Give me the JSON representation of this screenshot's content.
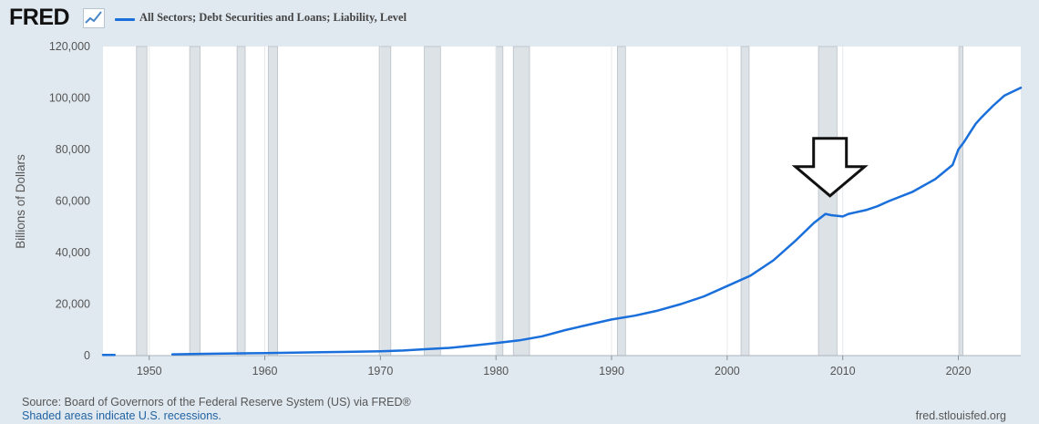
{
  "header": {
    "logo_text": "FRED",
    "logo_icon": "trend-line-icon"
  },
  "footer": {
    "source": "Source: Board of Governors of the Federal Reserve System (US) via FRED®",
    "note": "Shaded areas indicate U.S. recessions.",
    "site": "fred.stlouisfed.org"
  },
  "colors": {
    "line": "#1a6fdb",
    "recession": "#dde2e7",
    "background": "#e1e9f0",
    "plot": "#ffffff"
  },
  "chart_data": {
    "type": "line",
    "title": "",
    "xlabel": "",
    "ylabel": "Billions of Dollars",
    "xlim": [
      1946,
      2025.4
    ],
    "ylim": [
      0,
      120000
    ],
    "x_ticks": [
      1950,
      1960,
      1970,
      1980,
      1990,
      2000,
      2010,
      2020
    ],
    "y_ticks": [
      0,
      20000,
      40000,
      60000,
      80000,
      100000,
      120000
    ],
    "y_tick_labels": [
      "0",
      "20,000",
      "40,000",
      "60,000",
      "80,000",
      "100,000",
      "120,000"
    ],
    "grid": "vertical",
    "legend": "top-left",
    "series": [
      {
        "name": "All Sectors; Debt Securities and Loans; Liability, Level",
        "segments": [
          {
            "x": [
              1946,
              1947
            ],
            "y": [
              300,
              300
            ]
          },
          {
            "x": [
              1952,
              1955,
              1960,
              1965,
              1970,
              1972,
              1974,
              1976,
              1978,
              1980,
              1982,
              1984,
              1986,
              1988,
              1990,
              1992,
              1994,
              1996,
              1998,
              2000,
              2002,
              2004,
              2006,
              2007.5,
              2008.5,
              2009,
              2010,
              2010.5,
              2011,
              2012,
              2013,
              2014,
              2016,
              2018,
              2019.5,
              2020,
              2020.5,
              2021,
              2021.5,
              2022,
              2023,
              2024,
              2025.4
            ],
            "y": [
              500,
              700,
              1000,
              1300,
              1700,
              2000,
              2500,
              3000,
              3900,
              4900,
              5900,
              7500,
              9900,
              12000,
              14000,
              15500,
              17500,
              20000,
              23000,
              27000,
              31000,
              37000,
              45000,
              51500,
              55000,
              54500,
              54000,
              55000,
              55500,
              56500,
              58000,
              60000,
              63500,
              68500,
              74000,
              80000,
              83000,
              86500,
              90000,
              92500,
              97000,
              101000,
              104000
            ]
          }
        ]
      }
    ],
    "recessions": [
      [
        1948.9,
        1949.8
      ],
      [
        1953.5,
        1954.4
      ],
      [
        1957.6,
        1958.3
      ],
      [
        1960.3,
        1961.1
      ],
      [
        1969.9,
        1970.9
      ],
      [
        1973.8,
        1975.2
      ],
      [
        1980.0,
        1980.6
      ],
      [
        1981.5,
        1982.9
      ],
      [
        1990.5,
        1991.2
      ],
      [
        2001.2,
        2001.9
      ],
      [
        2007.9,
        2009.5
      ],
      [
        2020.1,
        2020.4
      ]
    ],
    "annotations": [
      {
        "type": "down-arrow",
        "x": 2008.9,
        "y": 62000
      }
    ]
  }
}
